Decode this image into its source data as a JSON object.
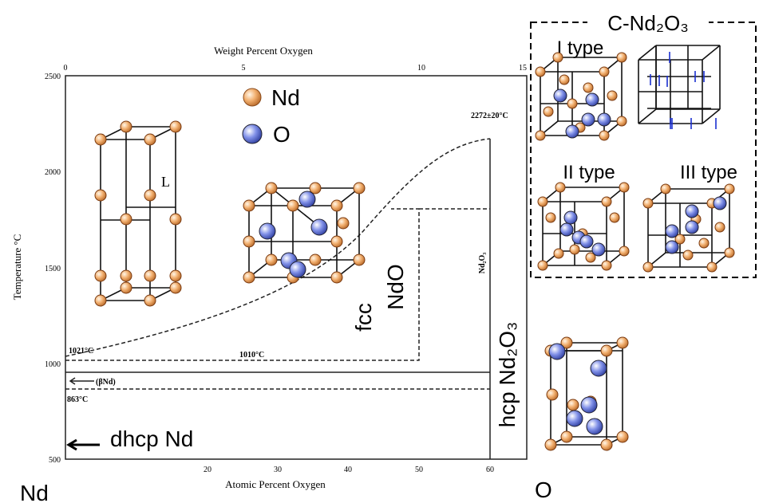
{
  "diagram": {
    "top_axis": {
      "label": "Weight Percent Oxygen",
      "ticks": [
        "0",
        "5",
        "10",
        "15"
      ]
    },
    "bottom_axis": {
      "label": "Atomic Percent Oxygen",
      "ticks": [
        "20",
        "30",
        "40",
        "50",
        "60"
      ]
    },
    "left_axis": {
      "label": "Temperature °C",
      "ticks": [
        "2500",
        "2000",
        "1500",
        "1000",
        "500"
      ]
    },
    "annotations": {
      "max": "2272±20°C",
      "t1021": "1021°C",
      "t1010": "1010°C",
      "t863": "863°C",
      "beta": "(βNd)",
      "liquid": "L",
      "compound": "Nd₂O₃"
    },
    "legend": {
      "nd": "Nd",
      "o": "O"
    },
    "phases": {
      "dhcp": "dhcp Nd",
      "fcc": "fcc",
      "ndo": "NdO",
      "hcp": "hcp Nd₂O₃"
    },
    "ends": {
      "left": "Nd",
      "right": "O"
    },
    "inset": {
      "title": "C-Nd₂O₃",
      "type1": "I type",
      "type2": "II type",
      "type3": "III type"
    }
  }
}
